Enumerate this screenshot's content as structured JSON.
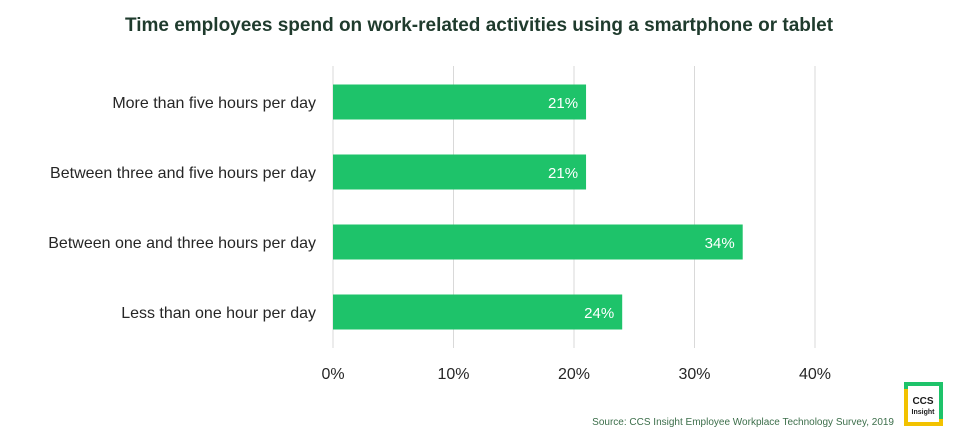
{
  "chart_data": {
    "type": "bar",
    "orientation": "horizontal",
    "title": "Time employees spend on work-related activities using a smartphone or tablet",
    "categories": [
      "More than five hours per day",
      "Between three and five hours per day",
      "Between one and three hours per day",
      "Less than one hour per day"
    ],
    "values": [
      21,
      21,
      34,
      24
    ],
    "data_labels": [
      "21%",
      "21%",
      "34%",
      "24%"
    ],
    "xlim": [
      0,
      40
    ],
    "xticks": [
      0,
      10,
      20,
      30,
      40
    ],
    "xtick_labels": [
      "0%",
      "10%",
      "20%",
      "30%",
      "40%"
    ],
    "grid": "vertical",
    "bar_color": "#1ec36a",
    "grid_color": "#d9d9d9"
  },
  "source": "Source: CCS Insight Employee Workplace Technology Survey, 2019",
  "logo": {
    "line1": "CCS",
    "line2": "Insight"
  },
  "colors": {
    "title": "#1f3b2d",
    "logo_green": "#1ec36a",
    "logo_yellow": "#f2c200"
  }
}
